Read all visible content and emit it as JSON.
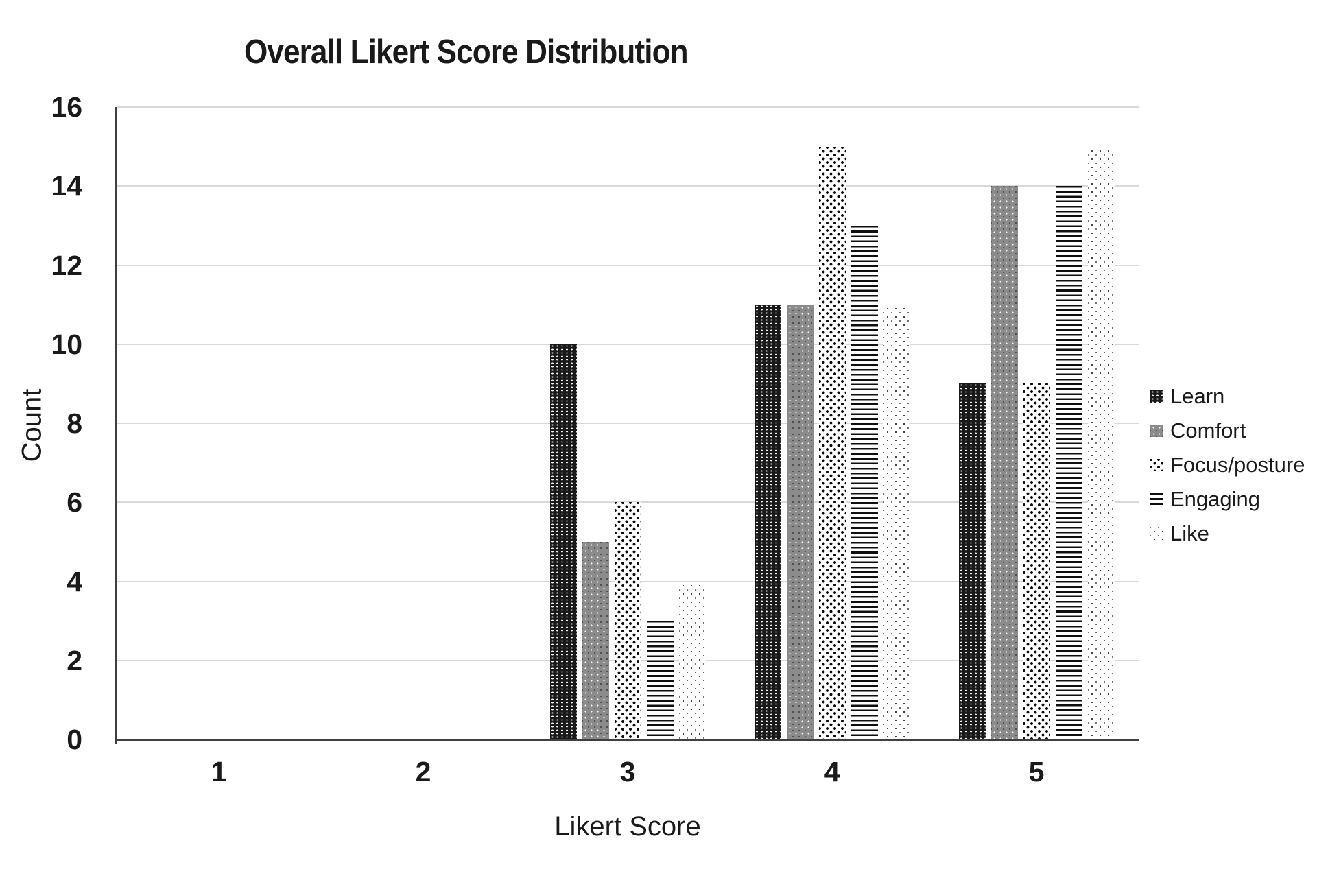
{
  "colors": {
    "gridline": "#d9d9d9",
    "axis": "#404040",
    "text": "#1a1a1a",
    "background": "#ffffff"
  },
  "chart_data": {
    "type": "bar",
    "title": "Overall Likert Score Distribution",
    "xlabel": "Likert Score",
    "ylabel": "Count",
    "categories": [
      "1",
      "2",
      "3",
      "4",
      "5"
    ],
    "series": [
      {
        "name": "Learn",
        "pattern": "dark-weave",
        "values": [
          0,
          0,
          10,
          11,
          9
        ]
      },
      {
        "name": "Comfort",
        "pattern": "gray-dots",
        "values": [
          0,
          0,
          5,
          11,
          14
        ]
      },
      {
        "name": "Focus/posture",
        "pattern": "black-checker-dots",
        "values": [
          0,
          0,
          6,
          15,
          9
        ]
      },
      {
        "name": "Engaging",
        "pattern": "horizontal-lines",
        "values": [
          0,
          0,
          3,
          13,
          14
        ]
      },
      {
        "name": "Like",
        "pattern": "light-dots",
        "values": [
          0,
          0,
          4,
          11,
          15
        ]
      }
    ],
    "ylim": [
      0,
      16
    ],
    "yticks": [
      "0",
      "2",
      "4",
      "6",
      "8",
      "10",
      "12",
      "14",
      "16"
    ],
    "grid": "horizontal",
    "legend_position": "right",
    "legend_items": [
      "Learn",
      "Comfort",
      "Focus/posture",
      "Engaging",
      "Like"
    ]
  }
}
